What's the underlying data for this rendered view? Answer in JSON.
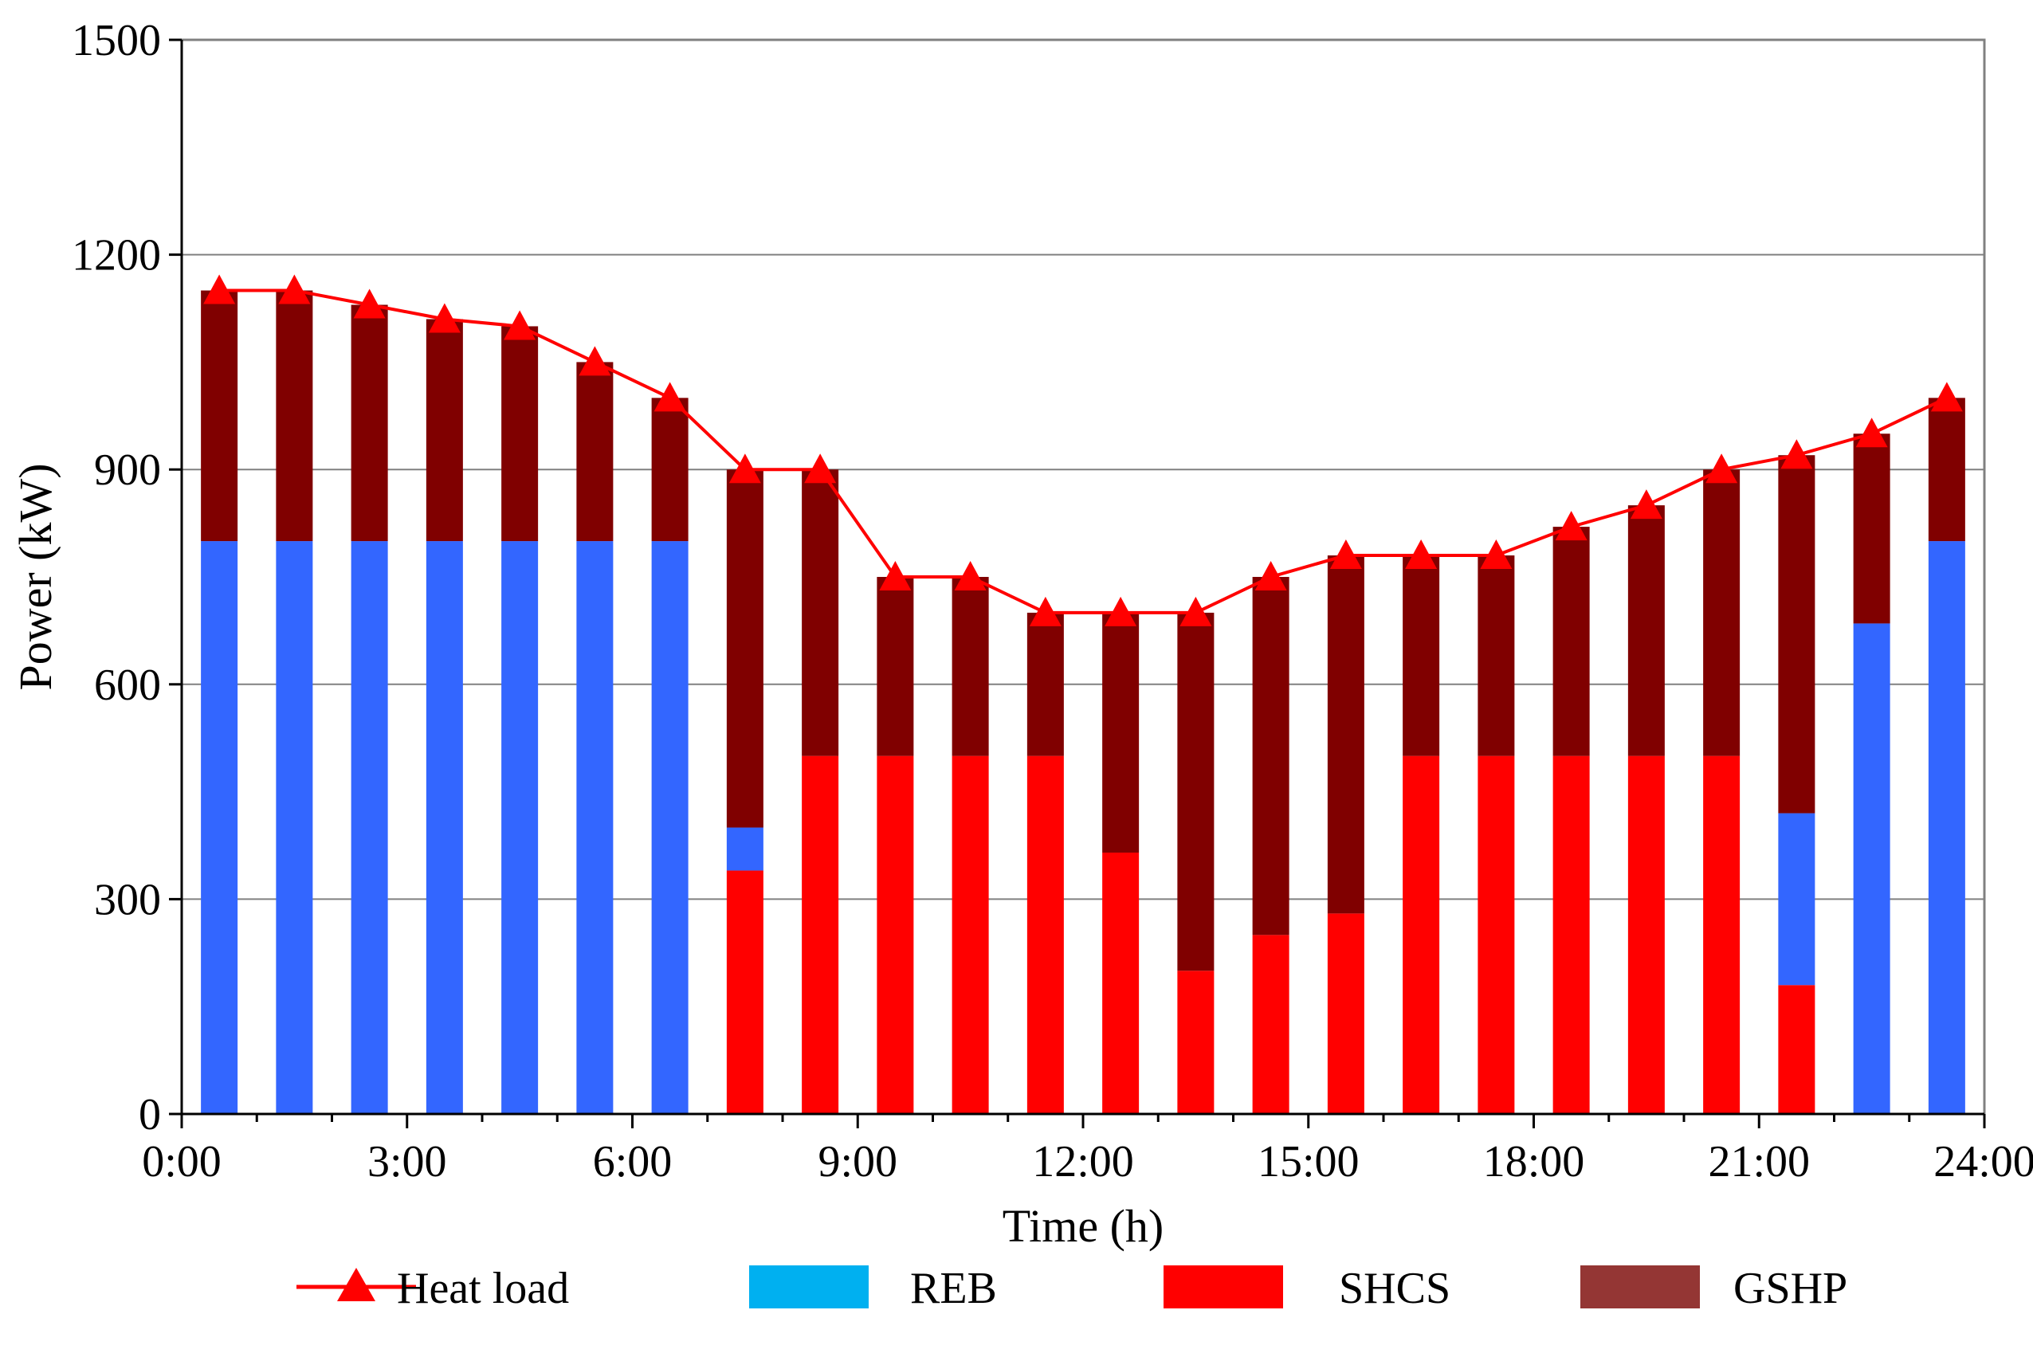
{
  "chart_data": {
    "type": "bar",
    "stacked": true,
    "title": "",
    "xlabel": "Time (h)",
    "ylabel": "Power (kW)",
    "ylim": [
      0,
      1500
    ],
    "yticks": [
      0,
      300,
      600,
      900,
      1200,
      1500
    ],
    "xticks": [
      "0:00",
      "3:00",
      "6:00",
      "9:00",
      "12:00",
      "15:00",
      "18:00",
      "21:00",
      "24:00"
    ],
    "grid": true,
    "legend_position": "bottom",
    "x": [
      0.5,
      1.5,
      2.5,
      3.5,
      4.5,
      5.5,
      6.5,
      7.5,
      8.5,
      9.5,
      10.5,
      11.5,
      12.5,
      13.5,
      14.5,
      15.5,
      16.5,
      17.5,
      18.5,
      19.5,
      20.5,
      21.5,
      22.5,
      23.5
    ],
    "series": [
      {
        "name": "SHCS",
        "color": "#ff0000",
        "values": [
          0,
          0,
          0,
          0,
          0,
          0,
          0,
          340,
          500,
          500,
          500,
          500,
          365,
          200,
          250,
          280,
          500,
          500,
          500,
          500,
          500,
          180,
          0,
          0
        ]
      },
      {
        "name": "REB",
        "color": "#3366ff",
        "legend_color": "#00b0f0",
        "values": [
          800,
          800,
          800,
          800,
          800,
          800,
          800,
          60,
          0,
          0,
          0,
          0,
          0,
          0,
          0,
          0,
          0,
          0,
          0,
          0,
          0,
          240,
          685,
          800
        ]
      },
      {
        "name": "GSHP",
        "color": "#800000",
        "legend_color": "#943634",
        "values": [
          350,
          350,
          330,
          310,
          300,
          250,
          200,
          500,
          400,
          250,
          250,
          200,
          335,
          500,
          500,
          500,
          280,
          280,
          320,
          350,
          400,
          500,
          265,
          200
        ]
      }
    ],
    "line": {
      "name": "Heat load",
      "color": "#ff0000",
      "marker": "triangle",
      "x": [
        0.5,
        1.5,
        2.5,
        3.5,
        4.5,
        5.5,
        6.5,
        7.5,
        8.5,
        9.5,
        10.5,
        11.5,
        12.5,
        13.5,
        14.5,
        15.5,
        16.5,
        17.5,
        18.5,
        19.5,
        20.5,
        21.5,
        22.5,
        23.5
      ],
      "values": [
        1150,
        1150,
        1130,
        1110,
        1100,
        1050,
        1000,
        900,
        900,
        750,
        750,
        700,
        700,
        700,
        750,
        780,
        780,
        780,
        820,
        850,
        900,
        920,
        950,
        1000
      ]
    },
    "legend_order": [
      "Heat load",
      "REB",
      "SHCS",
      "GSHP"
    ]
  }
}
